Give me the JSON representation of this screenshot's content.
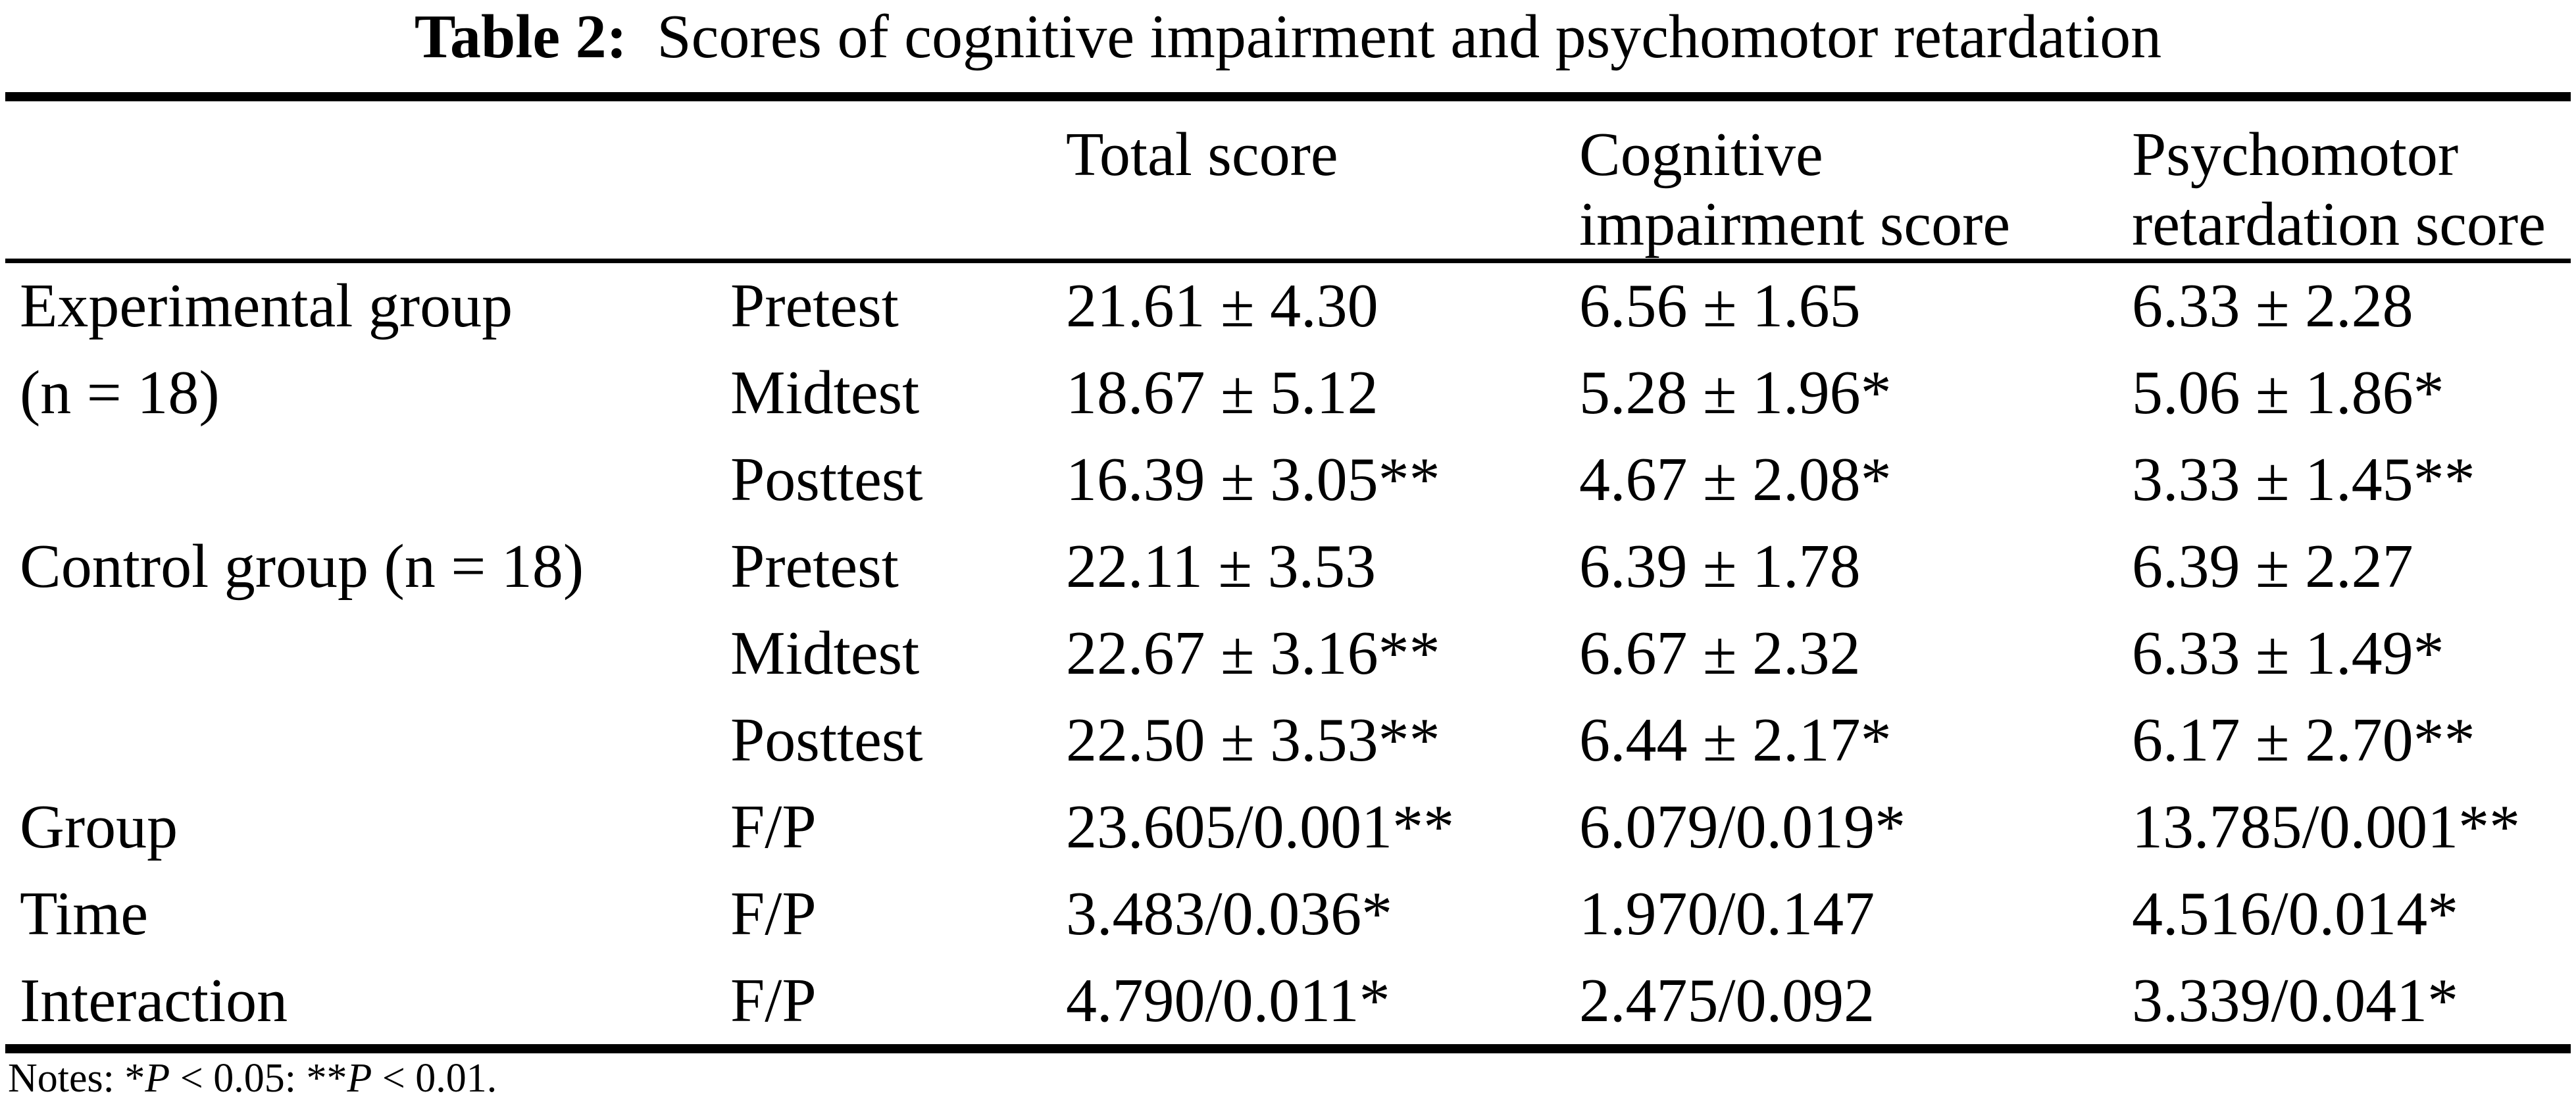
{
  "page": {
    "background": "#ffffff",
    "text_color": "#000000"
  },
  "title": {
    "label": "Table 2:",
    "text": "Scores of cognitive impairment and psychomotor retardation"
  },
  "table": {
    "header": [
      {
        "lines": [
          "Total score"
        ]
      },
      {
        "lines": [
          "Cognitive",
          "impairment score"
        ]
      },
      {
        "lines": [
          "Psychomotor",
          "retardation score"
        ]
      }
    ],
    "rows": [
      {
        "group": "Experimental group",
        "group2": "(n = 18)",
        "test": "Pretest",
        "total": "21.61 ± 4.30",
        "cognitive": "6.56 ± 1.65",
        "psychomotor": "6.33 ± 2.28"
      },
      {
        "group": "",
        "group2": "",
        "test": "Midtest",
        "total": "18.67 ± 5.12",
        "cognitive": "5.28 ± 1.96*",
        "psychomotor": "5.06 ± 1.86*"
      },
      {
        "group": "",
        "group2": "",
        "test": "Posttest",
        "total": "16.39 ± 3.05**",
        "cognitive": "4.67 ± 2.08*",
        "psychomotor": "3.33 ± 1.45**"
      },
      {
        "group": "Control group (n = 18)",
        "group2": "",
        "test": "Pretest",
        "total": "22.11 ± 3.53",
        "cognitive": "6.39 ± 1.78",
        "psychomotor": "6.39 ± 2.27"
      },
      {
        "group": "",
        "group2": "",
        "test": "Midtest",
        "total": "22.67 ± 3.16**",
        "cognitive": "6.67 ± 2.32",
        "psychomotor": "6.33 ± 1.49*"
      },
      {
        "group": "",
        "group2": "",
        "test": "Posttest",
        "total": "22.50 ± 3.53**",
        "cognitive": "6.44 ± 2.17*",
        "psychomotor": "6.17 ± 2.70**"
      },
      {
        "group": "Group",
        "group2": "",
        "test": "F/P",
        "total": "23.605/0.001**",
        "cognitive": "6.079/0.019*",
        "psychomotor": "13.785/0.001**"
      },
      {
        "group": "Time",
        "group2": "",
        "test": "F/P",
        "total": "3.483/0.036*",
        "cognitive": "1.970/0.147",
        "psychomotor": "4.516/0.014*"
      },
      {
        "group": "Interaction",
        "group2": "",
        "test": "F/P",
        "total": "4.790/0.011*",
        "cognitive": "2.475/0.092",
        "psychomotor": "3.339/0.041*"
      }
    ],
    "notes": {
      "prefix": "Notes: *",
      "p1": "P",
      "mid": " < 0.05: **",
      "p2": "P",
      "suffix": " < 0.01."
    }
  }
}
